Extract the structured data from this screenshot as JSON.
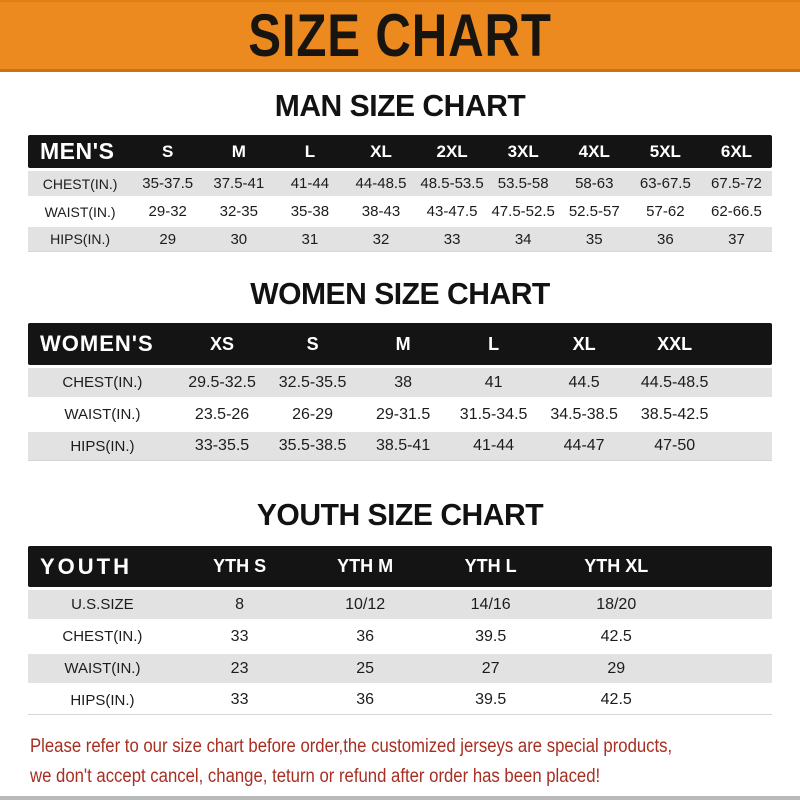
{
  "banner": {
    "title": "SIZE CHART",
    "bg_color": "#EC8A1F",
    "text_color": "#181410"
  },
  "colors": {
    "table_header_bg": "#141414",
    "table_row_gray": "#E2E2E2",
    "footer_red": "#A72E20"
  },
  "sections": [
    {
      "title": "MAN SIZE CHART",
      "header_label": "MEN'S",
      "columns": [
        "S",
        "M",
        "L",
        "XL",
        "2XL",
        "3XL",
        "4XL",
        "5XL",
        "6XL"
      ],
      "rows": [
        {
          "label": "CHEST(IN.)",
          "values": [
            "35-37.5",
            "37.5-41",
            "41-44",
            "44-48.5",
            "48.5-53.5",
            "53.5-58",
            "58-63",
            "63-67.5",
            "67.5-72"
          ]
        },
        {
          "label": "WAIST(IN.)",
          "values": [
            "29-32",
            "32-35",
            "35-38",
            "38-43",
            "43-47.5",
            "47.5-52.5",
            "52.5-57",
            "57-62",
            "62-66.5"
          ]
        },
        {
          "label": "HIPS(IN.)",
          "values": [
            "29",
            "30",
            "31",
            "32",
            "33",
            "34",
            "35",
            "36",
            "37"
          ]
        }
      ]
    },
    {
      "title": "WOMEN SIZE CHART",
      "header_label": "WOMEN'S",
      "columns": [
        "XS",
        "S",
        "M",
        "L",
        "XL",
        "XXL"
      ],
      "rows": [
        {
          "label": "CHEST(IN.)",
          "values": [
            "29.5-32.5",
            "32.5-35.5",
            "38",
            "41",
            "44.5",
            "44.5-48.5"
          ]
        },
        {
          "label": "WAIST(IN.)",
          "values": [
            "23.5-26",
            "26-29",
            "29-31.5",
            "31.5-34.5",
            "34.5-38.5",
            "38.5-42.5"
          ]
        },
        {
          "label": "HIPS(IN.)",
          "values": [
            "33-35.5",
            "35.5-38.5",
            "38.5-41",
            "41-44",
            "44-47",
            "47-50"
          ]
        }
      ]
    },
    {
      "title": "YOUTH SIZE CHART",
      "header_label": "YOUTH",
      "columns": [
        "YTH S",
        "YTH M",
        "YTH L",
        "YTH XL"
      ],
      "rows": [
        {
          "label": "U.S.SIZE",
          "values": [
            "8",
            "10/12",
            "14/16",
            "18/20"
          ]
        },
        {
          "label": "CHEST(IN.)",
          "values": [
            "33",
            "36",
            "39.5",
            "42.5"
          ]
        },
        {
          "label": "WAIST(IN.)",
          "values": [
            "23",
            "25",
            "27",
            "29"
          ]
        },
        {
          "label": "HIPS(IN.)",
          "values": [
            "33",
            "36",
            "39.5",
            "42.5"
          ]
        }
      ]
    }
  ],
  "footer": {
    "line1": "Please refer to our size chart before order,the customized jerseys are special products,",
    "line2": "we don't accept cancel, change, teturn or refund after order has been placed!"
  }
}
